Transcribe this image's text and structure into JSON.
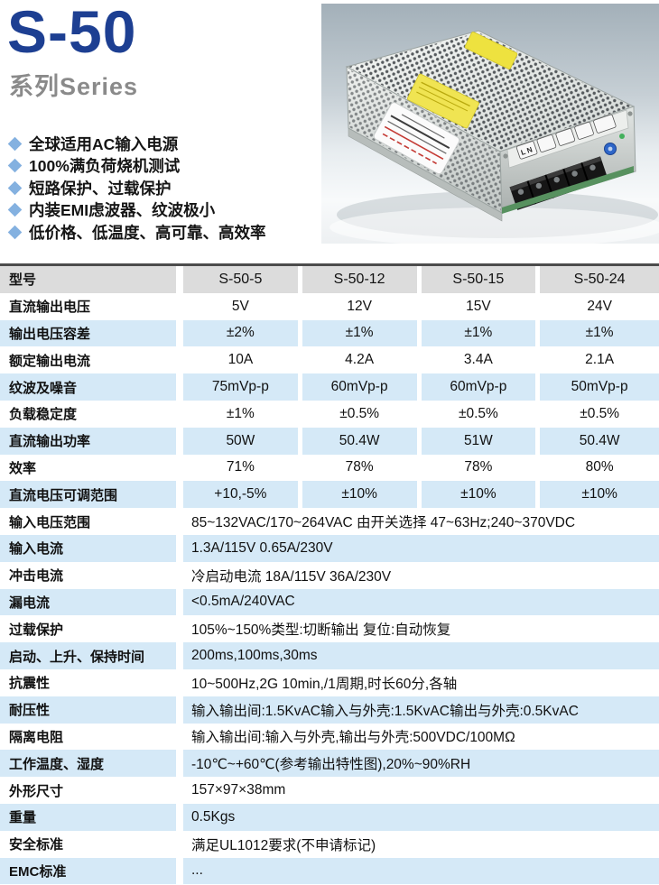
{
  "header": {
    "title": "S-50",
    "subtitle": "系列Series",
    "title_color": "#1d3f92",
    "subtitle_color": "#8a8a8a",
    "bullet_color": "#84b1e0",
    "features": [
      "全球适用AC输入电源",
      "100%满负荷烧机测试",
      "短路保护、过载保护",
      "内装EMI虑波器、纹波极小",
      "低价格、低温度、高可靠、高效率"
    ]
  },
  "product_photo": {
    "type": "enclosed-switching-power-supply-photo",
    "terminal_label": "L N",
    "sticker_color": "#eee23f",
    "case_color": "#d7dcda"
  },
  "table": {
    "colors": {
      "alt_row": "#d5e9f7",
      "header_bg": "#dcdcdc",
      "top_border": "#4c4c4c"
    },
    "header_row": {
      "label": "型号",
      "cols": [
        "S-50-5",
        "S-50-12",
        "S-50-15",
        "S-50-24"
      ]
    },
    "spec_rows": [
      {
        "label": "直流输出电压",
        "values": [
          "5V",
          "12V",
          "15V",
          "24V"
        ]
      },
      {
        "label": "输出电压容差",
        "values": [
          "±2%",
          "±1%",
          "±1%",
          "±1%"
        ]
      },
      {
        "label": "额定输出电流",
        "values": [
          "10A",
          "4.2A",
          "3.4A",
          "2.1A"
        ]
      },
      {
        "label": "纹波及噪音",
        "values": [
          "75mVp-p",
          "60mVp-p",
          "60mVp-p",
          "50mVp-p"
        ]
      },
      {
        "label": "负载稳定度",
        "values": [
          "±1%",
          "±0.5%",
          "±0.5%",
          "±0.5%"
        ]
      },
      {
        "label": "直流输出功率",
        "values": [
          "50W",
          "50.4W",
          "51W",
          "50.4W"
        ]
      },
      {
        "label": "效率",
        "values": [
          "71%",
          "78%",
          "78%",
          "80%"
        ]
      },
      {
        "label": "直流电压可调范围",
        "values": [
          "+10,-5%",
          "±10%",
          "±10%",
          "±10%"
        ]
      }
    ],
    "full_rows": [
      {
        "label": "输入电压范围",
        "value": "85~132VAC/170~264VAC 由开关选择 47~63Hz;240~370VDC"
      },
      {
        "label": "输入电流",
        "value": "1.3A/115V 0.65A/230V"
      },
      {
        "label": "冲击电流",
        "value": "冷启动电流 18A/115V 36A/230V"
      },
      {
        "label": "漏电流",
        "value": "<0.5mA/240VAC"
      },
      {
        "label": "过载保护",
        "value": "105%~150%类型:切断输出 复位:自动恢复"
      },
      {
        "label": "启动、上升、保持时间",
        "value": "200ms,100ms,30ms"
      },
      {
        "label": "抗震性",
        "value": "10~500Hz,2G 10min,/1周期,时长60分,各轴"
      },
      {
        "label": "耐压性",
        "value": "输入输出间:1.5KvAC输入与外壳:1.5KvAC输出与外壳:0.5KvAC"
      },
      {
        "label": "隔离电阻",
        "value": "输入输出间:输入与外壳,输出与外壳:500VDC/100MΩ"
      },
      {
        "label": "工作温度、湿度",
        "value": "-10℃~+60℃(参考输出特性图),20%~90%RH"
      },
      {
        "label": "外形尺寸",
        "value": "157×97×38mm"
      },
      {
        "label": "重量",
        "value": "0.5Kgs"
      },
      {
        "label": "安全标准",
        "value": "满足UL1012要求(不申请标记)"
      },
      {
        "label": "EMC标准",
        "value": "..."
      }
    ]
  }
}
